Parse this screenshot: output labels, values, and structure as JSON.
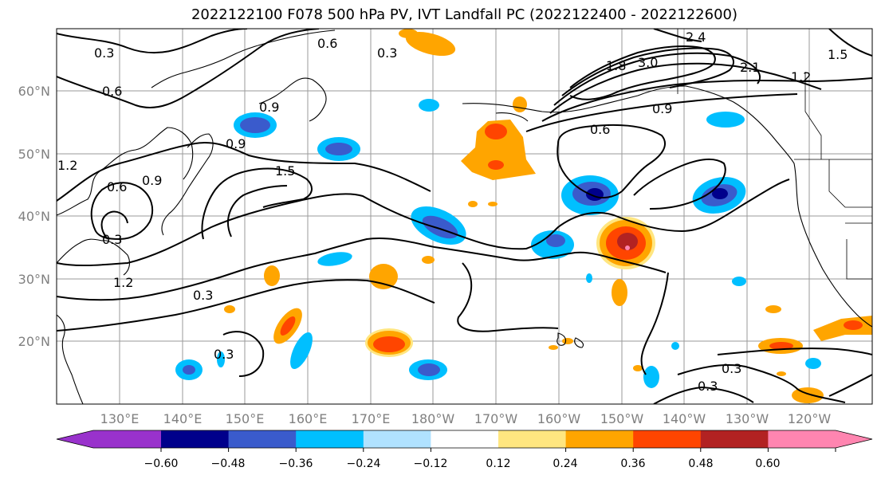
{
  "title": "2022122100 F078 500 hPa PV, IVT Landfall PC (2022122400 - 2022122600)",
  "latitude_labels": [
    "60°N",
    "50°N",
    "40°N",
    "30°N",
    "20°N"
  ],
  "longitude_labels": [
    "130°E",
    "140°E",
    "150°E",
    "160°E",
    "170°E",
    "180°W",
    "170°W",
    "160°W",
    "150°W",
    "140°W",
    "130°W",
    "120°W"
  ],
  "contour_labels": [
    "0.3",
    "0.6",
    "0.9",
    "1.2",
    "1.5",
    "1.8",
    "2.1",
    "2.4",
    "3.0",
    "0.3",
    "0.6",
    "0.9",
    "1.2",
    "1.5",
    "0.6",
    "0.9",
    "0.3",
    "0.6",
    "0.9",
    "1.2",
    "0.3",
    "0.3",
    "0.3",
    "0.3"
  ],
  "colorbar": {
    "tick_labels": [
      "−0.60",
      "−0.48",
      "−0.36",
      "−0.24",
      "−0.12",
      "0.12",
      "0.24",
      "0.36",
      "0.48",
      "0.60"
    ],
    "colors": [
      "#9932cc",
      "#00008b",
      "#3a5bcc",
      "#00bfff",
      "#b0e2ff",
      "#ffffff",
      "#ffe680",
      "#ffa500",
      "#ff4500",
      "#b22222",
      "#ff85b0"
    ]
  }
}
